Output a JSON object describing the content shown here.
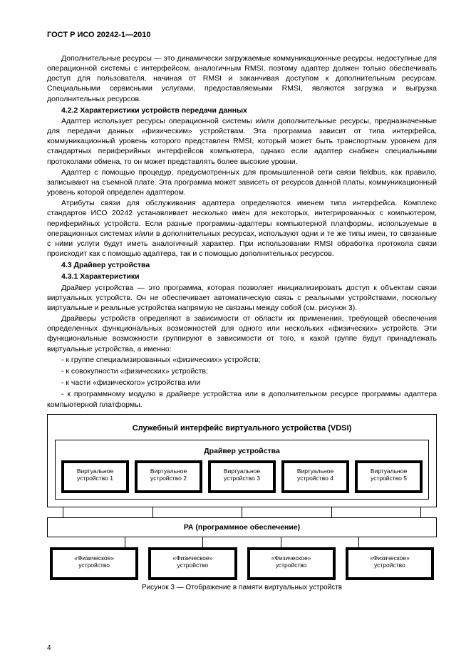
{
  "header": "ГОСТ Р ИСО 20242-1—2010",
  "p1": "Дополнительные ресурсы — это динамически загружаемые коммуникационные ресурсы, недоступные для операционной системы с интерфейсом, аналогичным RMSI, поэтому адаптер должен только обеспечивать доступ для пользователя, начиная от RMSI и заканчивая доступом к дополнительным ресурсам. Специальными сервисными услугами, предоставляемыми RMSI, являются загрузка и выгрузка дополнительных ресурсов.",
  "h422": "4.2.2 Характеристики устройств передачи данных",
  "p2": "Адаптер использует ресурсы операционной системы и/или дополнительные ресурсы, предназначенные для передачи данных «физическим» устройствам. Эта программа зависит от типа интерфейса, коммуникационный уровень которого представлен RMSI, который может быть транспортным уровнем для стандартных периферийных интерфейсов компьютера, однако если адаптер снабжен специальными протоколами обмена, то он может представлять более высокие уровни.",
  "p3": "Адаптер с помощью процедур, предусмотренных для промышленной сети связи fieldbus, как правило, записывают на съемной плате. Эта программа может зависеть от ресурсов данной платы, коммуникационный уровень которой определен адаптером.",
  "p4": "Атрибуты связи для обслуживания адаптера определяются именем типа интерфейса. Комплекс стандартов ИСО 20242 устанавливает несколько имен для некоторых, интегрированных с компьютером, периферийных устройств. Если разные программы-адаптеры компьютерной платформы, используемые в операционных системах и/или в дополнительных ресурсах, используют одни и те же типы имен, то связанные с ними услуги будут иметь аналогичный характер. При использовании RMSI обработка протокола связи происходит как с помощью адаптера, так и с помощью дополнительных ресурсов.",
  "h43": "4.3 Драйвер устройства",
  "h431": "4.3.1 Характеристики",
  "p5": "Драйвер устройства — это программа, которая позволяет инициализировать доступ к объектам связи виртуальных устройств. Он не обеспечивает автоматическую связь с реальными устройствами, поскольку виртуальные и реальные устройства напрямую не связаны между собой (см. рисунок 3).",
  "p6": "Драйверы устройств определяют в зависимости от области их применения, требующей обеспечения определенных функциональных возможностей для одного или нескольких «физических» устройств. Эти функциональные возможности группируют в зависимости от того, к какой группе будут принадлежать виртуальные устройства, а именно:",
  "li1": "- к группе специализированных «физических» устройств;",
  "li2": "- к совокупности «физических» устройств;",
  "li3": "- к части «физического» устройства или",
  "li4": "- к программному модулю в драйвере устройства или в дополнительном ресурсе программы адаптера компьютерной платформы.",
  "fig": {
    "vdsi": "Служебный интерфейс виртуального устройства (VDSI)",
    "driver": "Драйвер устройства",
    "virt": [
      {
        "l1": "Виртуальное",
        "l2": "устройство 1"
      },
      {
        "l1": "Виртуальное",
        "l2": "устройство 2"
      },
      {
        "l1": "Виртуальное",
        "l2": "устройство 3"
      },
      {
        "l1": "Виртуальное",
        "l2": "устройство 4"
      },
      {
        "l1": "Виртуальное",
        "l2": "устройство 5"
      }
    ],
    "pa": "РА (программное обеспечение)",
    "phys": [
      {
        "l1": "«Физическое»",
        "l2": "устройство"
      },
      {
        "l1": "«Физическое»",
        "l2": "устройство"
      },
      {
        "l1": "«Физическое»",
        "l2": "устройство"
      },
      {
        "l1": "«Физическое»",
        "l2": "устройство"
      }
    ],
    "caption": "Рисунок 3 — Отображение в памяти виртуальных устройств"
  },
  "pageNum": "4"
}
